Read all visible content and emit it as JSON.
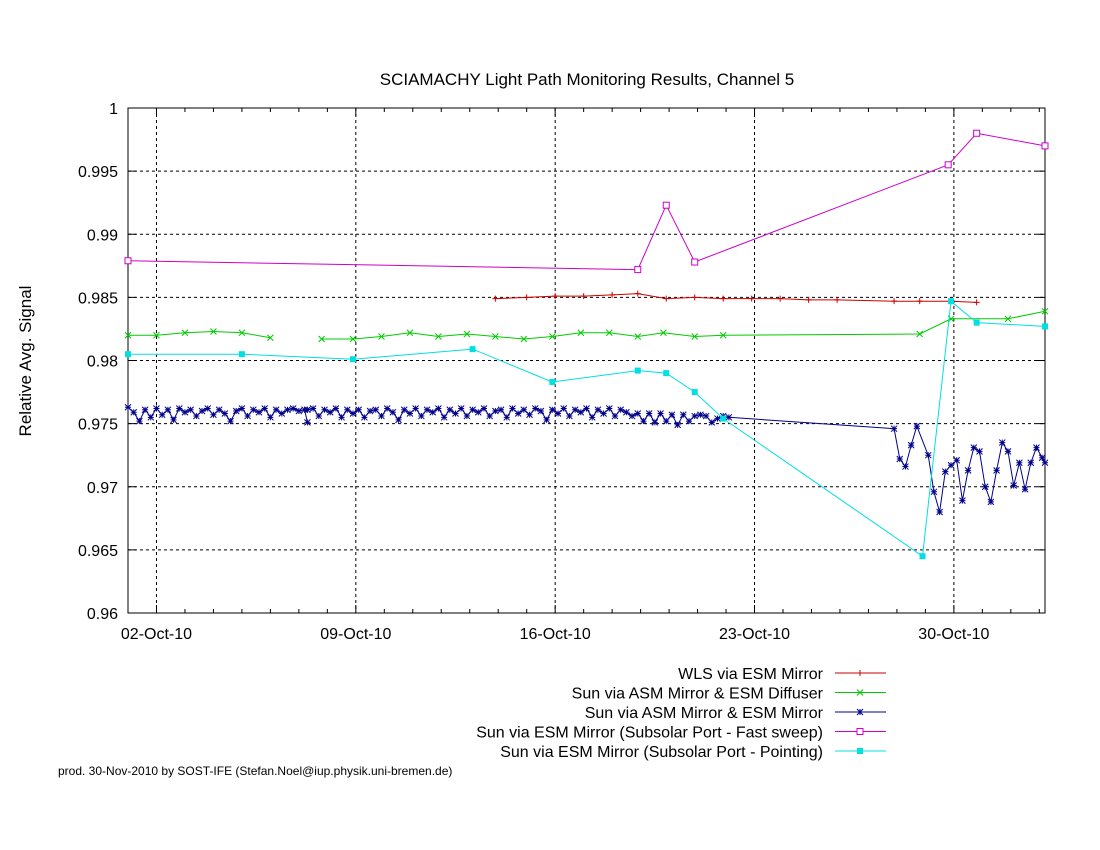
{
  "chart_data": {
    "type": "line",
    "title": "SCIAMACHY Light Path Monitoring Results, Channel 5",
    "ylabel": "Relative Avg. Signal",
    "xlabel": "",
    "ylim": [
      0.96,
      1.0
    ],
    "xlim": [
      0.0,
      32.2
    ],
    "yticks": [
      0.96,
      0.965,
      0.97,
      0.975,
      0.98,
      0.985,
      0.99,
      0.995,
      1
    ],
    "ytick_labels": [
      "0.96",
      "0.965",
      "0.97",
      "0.975",
      "0.98",
      "0.985",
      "0.99",
      "0.995",
      "1"
    ],
    "xticks": [
      1,
      8,
      15,
      22,
      29
    ],
    "xtick_labels": [
      "02-Oct-10",
      "09-Oct-10",
      "16-Oct-10",
      "23-Oct-10",
      "30-Oct-10"
    ],
    "grid": true,
    "legend_position": "bottom-right",
    "footer": "prod. 30-Nov-2010 by SOST-IFE (Stefan.Noel@iup.physik.uni-bremen.de)",
    "series": [
      {
        "name": "WLS via ESM Mirror",
        "color": "#cc0000",
        "marker": "plus",
        "segments": [
          [
            [
              12.9,
              0.9849
            ],
            [
              14.0,
              0.985
            ],
            [
              15.0,
              0.9851
            ],
            [
              16.0,
              0.9851
            ],
            [
              17.0,
              0.9852
            ],
            [
              17.9,
              0.9853
            ],
            [
              18.9,
              0.9849
            ],
            [
              19.9,
              0.985
            ],
            [
              20.9,
              0.9849
            ],
            [
              21.9,
              0.9849
            ],
            [
              22.9,
              0.9849
            ],
            [
              23.9,
              0.9848
            ],
            [
              24.9,
              0.9848
            ],
            [
              26.9,
              0.9847
            ],
            [
              27.8,
              0.9847
            ],
            [
              28.9,
              0.9847
            ],
            [
              29.8,
              0.9846
            ]
          ]
        ]
      },
      {
        "name": "Sun via ASM Mirror & ESM Diffuser",
        "color": "#00cc00",
        "marker": "x",
        "segments": [
          [
            [
              0.0,
              0.982
            ],
            [
              1.0,
              0.982
            ],
            [
              2.0,
              0.9822
            ],
            [
              3.0,
              0.9823
            ],
            [
              4.0,
              0.9822
            ],
            [
              5.0,
              0.9818
            ]
          ],
          [
            [
              6.8,
              0.9817
            ],
            [
              7.9,
              0.9817
            ],
            [
              8.9,
              0.9819
            ],
            [
              9.9,
              0.9822
            ],
            [
              10.9,
              0.9819
            ],
            [
              11.9,
              0.9821
            ],
            [
              12.9,
              0.9819
            ],
            [
              13.9,
              0.9817
            ],
            [
              14.9,
              0.9819
            ],
            [
              15.9,
              0.9822
            ],
            [
              16.9,
              0.9822
            ],
            [
              17.9,
              0.9819
            ],
            [
              18.8,
              0.9822
            ],
            [
              19.9,
              0.9819
            ],
            [
              20.9,
              0.982
            ],
            [
              27.8,
              0.9821
            ],
            [
              28.9,
              0.9833
            ],
            [
              30.9,
              0.9833
            ],
            [
              32.2,
              0.9839
            ]
          ]
        ]
      },
      {
        "name": "Sun via ASM Mirror & ESM Mirror",
        "color": "#00008b",
        "marker": "star",
        "segments": [
          [
            [
              0.0,
              0.9763
            ],
            [
              0.2,
              0.9759
            ],
            [
              0.4,
              0.9752
            ],
            [
              0.6,
              0.9761
            ],
            [
              0.8,
              0.9755
            ],
            [
              1.0,
              0.9762
            ],
            [
              1.2,
              0.9757
            ],
            [
              1.4,
              0.9761
            ],
            [
              1.6,
              0.9753
            ],
            [
              1.8,
              0.9762
            ],
            [
              2.0,
              0.9759
            ],
            [
              2.2,
              0.9761
            ],
            [
              2.4,
              0.9756
            ],
            [
              2.6,
              0.976
            ],
            [
              2.8,
              0.9762
            ],
            [
              3.0,
              0.9757
            ],
            [
              3.2,
              0.9761
            ],
            [
              3.4,
              0.9758
            ],
            [
              3.6,
              0.9752
            ],
            [
              3.8,
              0.976
            ],
            [
              4.0,
              0.9762
            ],
            [
              4.2,
              0.9756
            ],
            [
              4.4,
              0.9761
            ],
            [
              4.6,
              0.9759
            ],
            [
              4.8,
              0.9762
            ],
            [
              5.0,
              0.9755
            ],
            [
              5.2,
              0.9761
            ],
            [
              5.4,
              0.9758
            ],
            [
              5.6,
              0.9761
            ],
            [
              5.8,
              0.9762
            ],
            [
              6.0,
              0.976
            ],
            [
              6.2,
              0.9761
            ],
            [
              6.3,
              0.9751
            ]
          ],
          [
            [
              6.3,
              0.9761
            ],
            [
              6.5,
              0.9762
            ],
            [
              6.7,
              0.9756
            ],
            [
              6.9,
              0.9761
            ],
            [
              7.1,
              0.9759
            ],
            [
              7.3,
              0.9762
            ],
            [
              7.5,
              0.9755
            ],
            [
              7.7,
              0.9761
            ],
            [
              7.9,
              0.9758
            ],
            [
              8.1,
              0.9761
            ],
            [
              8.3,
              0.9755
            ],
            [
              8.5,
              0.976
            ],
            [
              8.7,
              0.9761
            ],
            [
              8.9,
              0.9756
            ],
            [
              9.1,
              0.9762
            ],
            [
              9.3,
              0.9759
            ],
            [
              9.5,
              0.9753
            ],
            [
              9.7,
              0.9761
            ],
            [
              9.9,
              0.9758
            ],
            [
              10.1,
              0.9762
            ],
            [
              10.3,
              0.9756
            ],
            [
              10.5,
              0.9761
            ],
            [
              10.7,
              0.9759
            ],
            [
              10.9,
              0.9762
            ],
            [
              11.1,
              0.9755
            ],
            [
              11.3,
              0.9761
            ],
            [
              11.5,
              0.9758
            ],
            [
              11.7,
              0.9762
            ],
            [
              11.9,
              0.9756
            ],
            [
              12.1,
              0.9761
            ],
            [
              12.3,
              0.9759
            ],
            [
              12.5,
              0.9762
            ],
            [
              12.7,
              0.9756
            ],
            [
              12.9,
              0.976
            ],
            [
              13.1,
              0.9761
            ],
            [
              13.3,
              0.9755
            ],
            [
              13.5,
              0.9762
            ],
            [
              13.7,
              0.9758
            ],
            [
              13.9,
              0.9761
            ],
            [
              14.1,
              0.9757
            ],
            [
              14.3,
              0.9762
            ],
            [
              14.5,
              0.976
            ],
            [
              14.7,
              0.9753
            ],
            [
              14.9,
              0.9761
            ],
            [
              15.1,
              0.9758
            ],
            [
              15.3,
              0.9762
            ],
            [
              15.5,
              0.9756
            ],
            [
              15.7,
              0.9761
            ],
            [
              15.9,
              0.9759
            ],
            [
              16.1,
              0.9762
            ],
            [
              16.3,
              0.9755
            ],
            [
              16.5,
              0.9761
            ],
            [
              16.7,
              0.9758
            ],
            [
              16.9,
              0.9762
            ],
            [
              17.1,
              0.9756
            ],
            [
              17.3,
              0.9761
            ],
            [
              17.5,
              0.9759
            ],
            [
              17.7,
              0.9756
            ],
            [
              17.9,
              0.9758
            ],
            [
              18.1,
              0.9752
            ],
            [
              18.3,
              0.9758
            ],
            [
              18.5,
              0.9751
            ],
            [
              18.7,
              0.9758
            ],
            [
              18.9,
              0.9752
            ],
            [
              19.1,
              0.9757
            ],
            [
              19.3,
              0.9749
            ],
            [
              19.5,
              0.9757
            ],
            [
              19.7,
              0.9752
            ],
            [
              19.9,
              0.9756
            ],
            [
              20.1,
              0.9757
            ],
            [
              20.3,
              0.9756
            ],
            [
              20.5,
              0.9751
            ],
            [
              20.7,
              0.9754
            ],
            [
              20.9,
              0.9756
            ],
            [
              21.1,
              0.9755
            ],
            [
              26.9,
              0.9746
            ],
            [
              27.1,
              0.9722
            ],
            [
              27.3,
              0.9716
            ],
            [
              27.5,
              0.9733
            ],
            [
              27.7,
              0.9748
            ],
            [
              28.1,
              0.9725
            ],
            [
              28.3,
              0.9696
            ],
            [
              28.5,
              0.968
            ],
            [
              28.7,
              0.9712
            ],
            [
              28.9,
              0.9717
            ],
            [
              29.1,
              0.9721
            ],
            [
              29.3,
              0.9689
            ],
            [
              29.5,
              0.9713
            ],
            [
              29.7,
              0.9731
            ],
            [
              29.9,
              0.9728
            ],
            [
              30.1,
              0.97
            ],
            [
              30.3,
              0.9688
            ],
            [
              30.5,
              0.9713
            ],
            [
              30.7,
              0.9735
            ],
            [
              30.9,
              0.9728
            ],
            [
              31.1,
              0.9701
            ],
            [
              31.3,
              0.9719
            ],
            [
              31.5,
              0.9698
            ],
            [
              31.7,
              0.9719
            ],
            [
              31.9,
              0.9731
            ],
            [
              32.1,
              0.9723
            ],
            [
              32.2,
              0.9719
            ]
          ]
        ]
      },
      {
        "name": "Sun via ESM Mirror (Subsolar Port - Fast sweep)",
        "color": "#cc00cc",
        "marker": "square-open",
        "segments": [
          [
            [
              0.0,
              0.9879
            ],
            [
              17.9,
              0.9872
            ],
            [
              18.9,
              0.9923
            ],
            [
              19.9,
              0.9878
            ],
            [
              28.8,
              0.9955
            ],
            [
              29.8,
              0.998
            ],
            [
              32.2,
              0.997
            ]
          ]
        ]
      },
      {
        "name": "Sun via ESM Mirror (Subsolar Port - Pointing)",
        "color": "#00e0e0",
        "marker": "square-filled",
        "segments": [
          [
            [
              0.0,
              0.9805
            ],
            [
              4.0,
              0.9805
            ],
            [
              7.9,
              0.9801
            ],
            [
              12.1,
              0.9809
            ],
            [
              14.9,
              0.9783
            ],
            [
              17.9,
              0.9792
            ],
            [
              18.9,
              0.979
            ],
            [
              19.9,
              0.9775
            ],
            [
              20.9,
              0.9754
            ],
            [
              27.9,
              0.9645
            ],
            [
              28.9,
              0.9847
            ],
            [
              29.8,
              0.983
            ],
            [
              32.2,
              0.9827
            ]
          ]
        ]
      }
    ]
  }
}
